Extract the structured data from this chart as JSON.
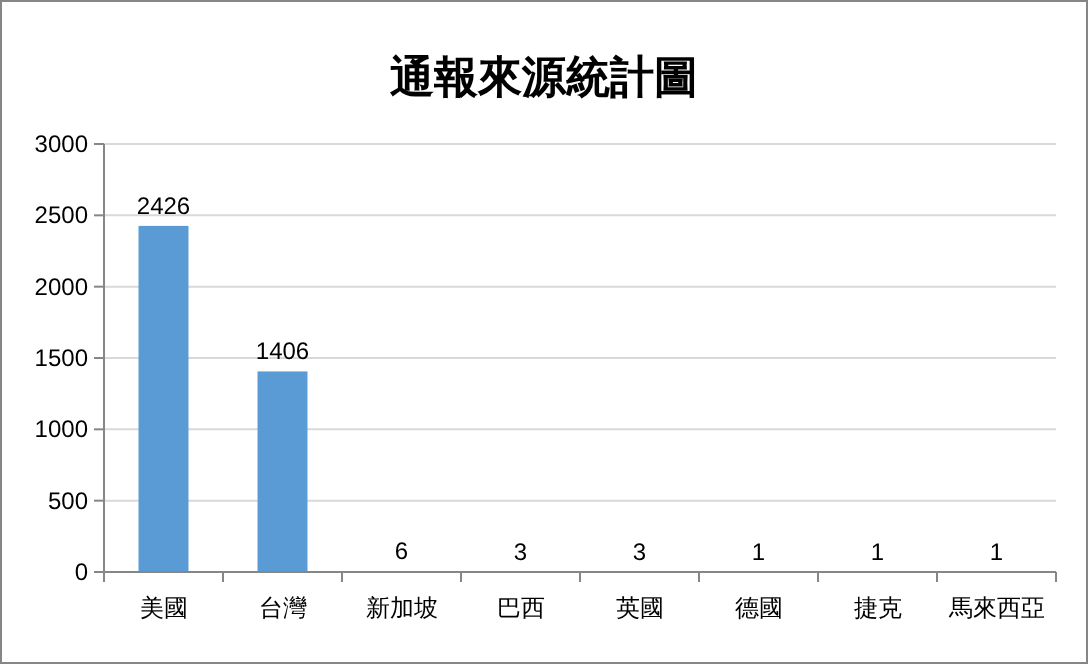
{
  "chart_data": {
    "type": "bar",
    "title": "通報來源統計圖",
    "categories": [
      "美國",
      "台灣",
      "新加坡",
      "巴西",
      "英國",
      "德國",
      "捷克",
      "馬來西亞"
    ],
    "values": [
      2426,
      1406,
      6,
      3,
      3,
      1,
      1,
      1
    ],
    "color": "#5b9bd5",
    "ylim": [
      0,
      3000
    ],
    "yticks": [
      0,
      500,
      1000,
      1500,
      2000,
      2500,
      3000
    ],
    "grid": "y",
    "data_labels": true
  }
}
